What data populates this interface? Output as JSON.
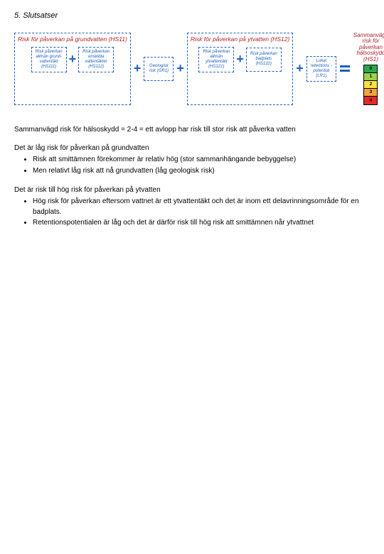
{
  "section_title": "5. Slutsatser",
  "colors": {
    "blue": "#1f5fbf",
    "red_text": "#b0202a",
    "plus": "#1f5fbf"
  },
  "group1": {
    "title": "Risk för påverkan på grundvatten (HS11)",
    "box1": "Risk påverkan allmän grund- vattentäkt (HS111)",
    "box2": "Risk påverkan enskilda vattentäkter (HS112)"
  },
  "box_geo": "Geologisk risk (GR1)",
  "group2": {
    "title": "Risk för påverkan på ytvatten (HS12)",
    "box1": "Risk påverkan allmän ytvattentäkt (HS121)",
    "box2": "Risk påverkan badplats (HS122)"
  },
  "box_ret": "Lokal retentions -potential (LR1)",
  "result": {
    "line1": "Sammanvägd",
    "line2": "risk för",
    "line3": "påverkan",
    "line4": "hälsoskydd",
    "line5": "(HS1)"
  },
  "scale": [
    {
      "label": "0",
      "color": "#2aa84a"
    },
    {
      "label": "1",
      "color": "#9bd24a"
    },
    {
      "label": "2",
      "color": "#ffe23a"
    },
    {
      "label": "3",
      "color": "#f4a23a"
    },
    {
      "label": "4",
      "color": "#e22a2a"
    }
  ],
  "para1": "Sammanvägd risk för hälsoskydd = 2-4 = ett avlopp har risk till stor risk att påverka vatten",
  "sub1": "Det är låg risk för påverkan på grundvatten",
  "list1": [
    "Risk att smittämnen förekommer är relativ hög (stor sammanhängande bebyggelse)",
    "Men relativt låg risk att nå grundvatten (låg geologisk risk)"
  ],
  "sub2": "Det är risk till hög risk för påverkan på ytvatten",
  "list2": [
    "Hög risk för påverkan eftersom vattnet är ett ytvattentäkt och det är inom ett delavrinningsområde för en badplats.",
    "Retentionspotentialen är låg och det är därför risk till hög risk att smittämnen når ytvattnet"
  ]
}
